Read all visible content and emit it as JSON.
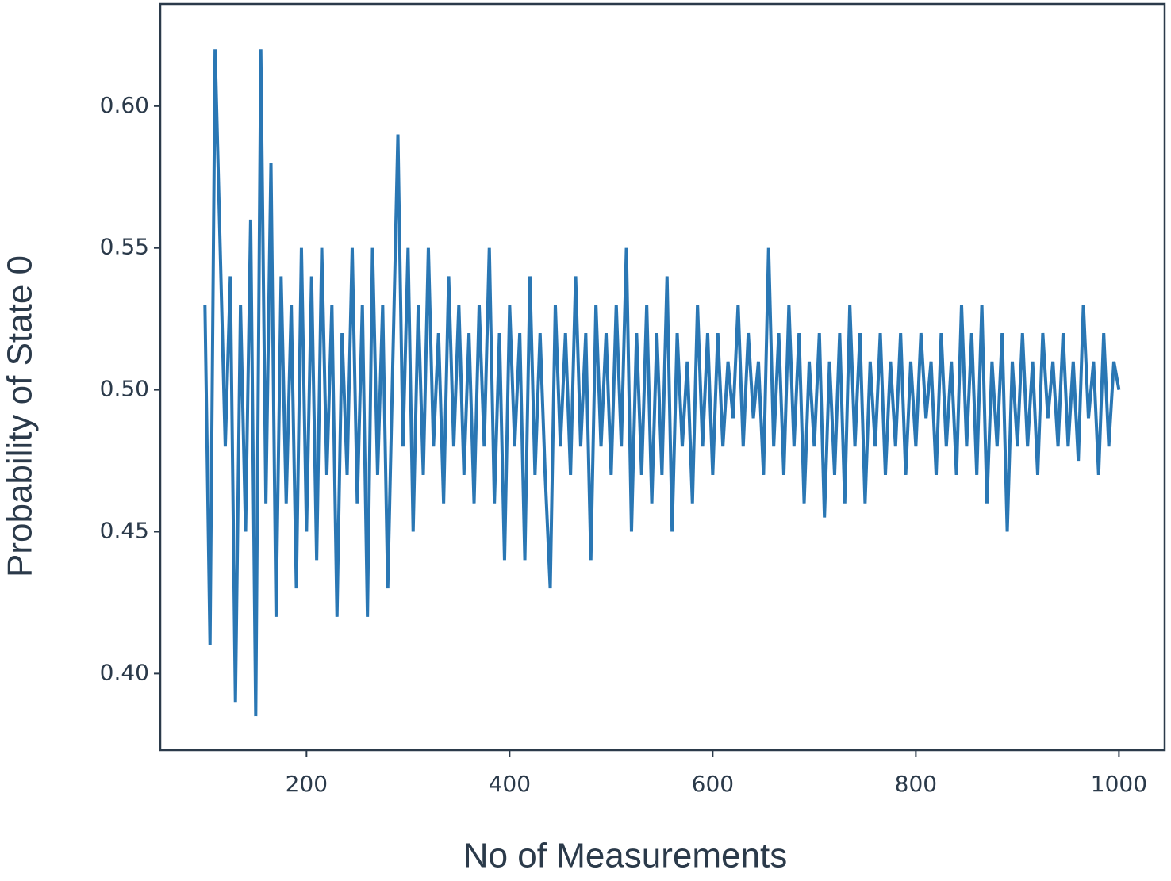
{
  "chart_data": {
    "type": "line",
    "xlabel": "No of Measurements",
    "ylabel": "Probability of State 0",
    "x": [
      100,
      105,
      110,
      115,
      120,
      125,
      130,
      135,
      140,
      145,
      150,
      155,
      160,
      165,
      170,
      175,
      180,
      185,
      190,
      195,
      200,
      205,
      210,
      215,
      220,
      225,
      230,
      235,
      240,
      245,
      250,
      255,
      260,
      265,
      270,
      275,
      280,
      285,
      290,
      295,
      300,
      305,
      310,
      315,
      320,
      325,
      330,
      335,
      340,
      345,
      350,
      355,
      360,
      365,
      370,
      375,
      380,
      385,
      390,
      395,
      400,
      405,
      410,
      415,
      420,
      425,
      430,
      435,
      440,
      445,
      450,
      455,
      460,
      465,
      470,
      475,
      480,
      485,
      490,
      495,
      500,
      505,
      510,
      515,
      520,
      525,
      530,
      535,
      540,
      545,
      550,
      555,
      560,
      565,
      570,
      575,
      580,
      585,
      590,
      595,
      600,
      605,
      610,
      615,
      620,
      625,
      630,
      635,
      640,
      645,
      650,
      655,
      660,
      665,
      670,
      675,
      680,
      685,
      690,
      695,
      700,
      705,
      710,
      715,
      720,
      725,
      730,
      735,
      740,
      745,
      750,
      755,
      760,
      765,
      770,
      775,
      780,
      785,
      790,
      795,
      800,
      805,
      810,
      815,
      820,
      825,
      830,
      835,
      840,
      845,
      850,
      855,
      860,
      865,
      870,
      875,
      880,
      885,
      890,
      895,
      900,
      905,
      910,
      915,
      920,
      925,
      930,
      935,
      940,
      945,
      950,
      955,
      960,
      965,
      970,
      975,
      980,
      985,
      990,
      995,
      1000
    ],
    "series": [
      {
        "name": "Probability of State 0",
        "color": "#2a77b4",
        "values": [
          0.53,
          0.41,
          0.62,
          0.55,
          0.48,
          0.54,
          0.39,
          0.53,
          0.45,
          0.56,
          0.385,
          0.62,
          0.46,
          0.58,
          0.42,
          0.54,
          0.46,
          0.53,
          0.43,
          0.55,
          0.45,
          0.54,
          0.44,
          0.55,
          0.47,
          0.53,
          0.42,
          0.52,
          0.47,
          0.55,
          0.46,
          0.53,
          0.42,
          0.55,
          0.47,
          0.53,
          0.43,
          0.51,
          0.59,
          0.48,
          0.55,
          0.45,
          0.53,
          0.47,
          0.55,
          0.48,
          0.52,
          0.46,
          0.54,
          0.48,
          0.53,
          0.47,
          0.52,
          0.46,
          0.53,
          0.48,
          0.55,
          0.46,
          0.52,
          0.44,
          0.53,
          0.48,
          0.52,
          0.44,
          0.54,
          0.47,
          0.52,
          0.47,
          0.43,
          0.53,
          0.48,
          0.52,
          0.47,
          0.54,
          0.48,
          0.52,
          0.44,
          0.53,
          0.48,
          0.52,
          0.47,
          0.53,
          0.48,
          0.55,
          0.45,
          0.52,
          0.47,
          0.53,
          0.46,
          0.52,
          0.47,
          0.54,
          0.45,
          0.52,
          0.48,
          0.51,
          0.46,
          0.53,
          0.48,
          0.52,
          0.47,
          0.52,
          0.48,
          0.51,
          0.49,
          0.53,
          0.48,
          0.52,
          0.49,
          0.51,
          0.47,
          0.55,
          0.48,
          0.52,
          0.47,
          0.53,
          0.48,
          0.52,
          0.46,
          0.51,
          0.48,
          0.52,
          0.455,
          0.51,
          0.47,
          0.52,
          0.46,
          0.53,
          0.48,
          0.52,
          0.46,
          0.51,
          0.48,
          0.52,
          0.47,
          0.51,
          0.48,
          0.52,
          0.47,
          0.51,
          0.48,
          0.52,
          0.49,
          0.51,
          0.47,
          0.52,
          0.48,
          0.51,
          0.47,
          0.53,
          0.48,
          0.52,
          0.47,
          0.53,
          0.46,
          0.51,
          0.48,
          0.52,
          0.45,
          0.51,
          0.48,
          0.52,
          0.48,
          0.51,
          0.47,
          0.52,
          0.49,
          0.51,
          0.48,
          0.52,
          0.48,
          0.51,
          0.475,
          0.53,
          0.49,
          0.51,
          0.47,
          0.52,
          0.48,
          0.51,
          0.5
        ]
      }
    ],
    "xlim": [
      56,
      1045
    ],
    "ylim": [
      0.373,
      0.636
    ],
    "xticks": [
      200,
      400,
      600,
      800,
      1000
    ],
    "yticks": [
      {
        "value": 0.4,
        "label": "0.40"
      },
      0.45,
      {
        "value": 0.5,
        "label": "0.50"
      },
      0.55,
      {
        "value": 0.6,
        "label": "0.60"
      }
    ]
  }
}
